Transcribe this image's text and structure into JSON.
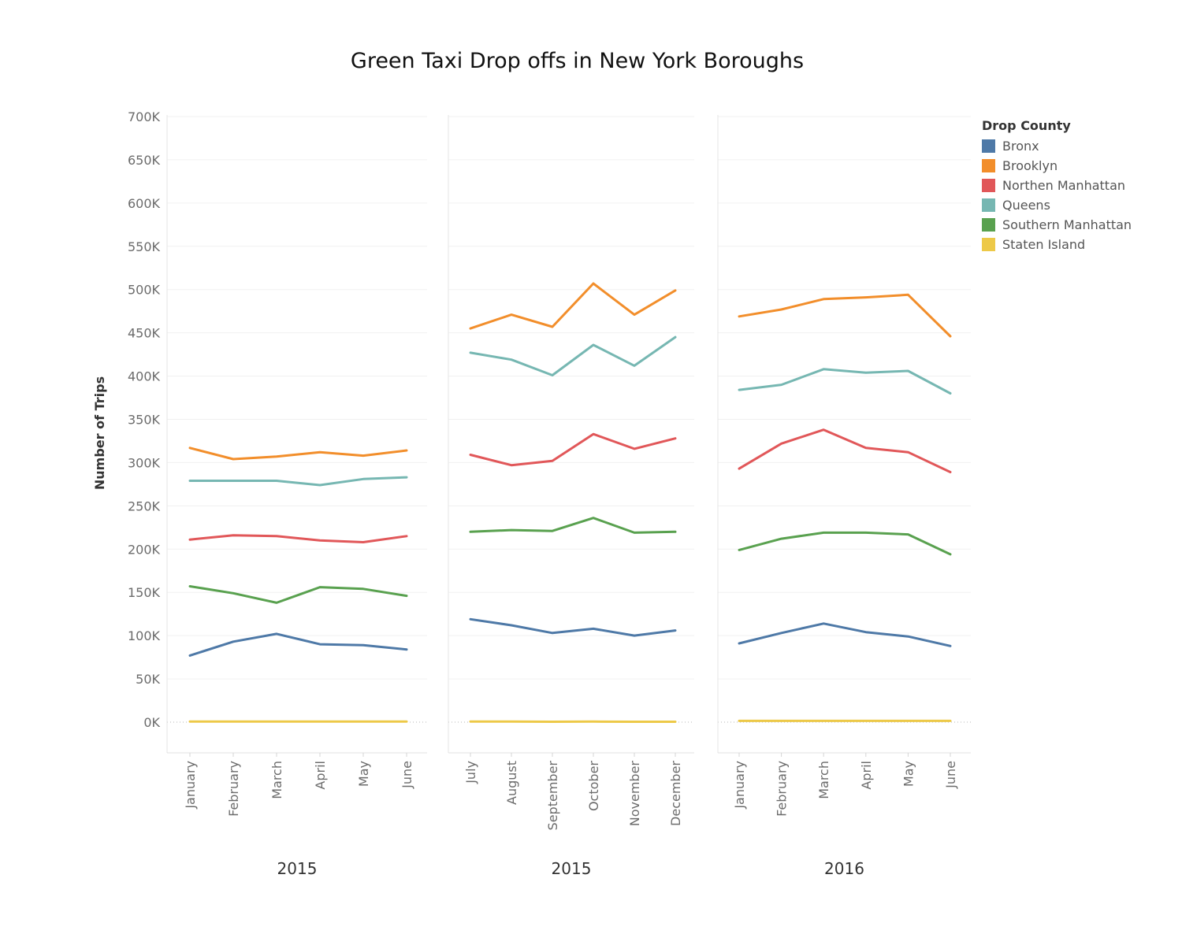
{
  "chart_data": {
    "type": "line",
    "title": "Green Taxi Drop offs in New York Boroughs",
    "ylabel": "Number of Trips",
    "ylim": [
      -35000,
      705000
    ],
    "y_ticks": [
      "700K",
      "650K",
      "600K",
      "550K",
      "500K",
      "450K",
      "400K",
      "350K",
      "300K",
      "250K",
      "200K",
      "150K",
      "100K",
      "50K",
      "0K"
    ],
    "y_tick_values": [
      700000,
      650000,
      600000,
      550000,
      500000,
      450000,
      400000,
      350000,
      300000,
      250000,
      200000,
      150000,
      100000,
      50000,
      0
    ],
    "grid": true,
    "legend": {
      "title": "Drop County",
      "placement": "top-right"
    },
    "series_info": [
      {
        "name": "Bronx",
        "color": "#4e79a7"
      },
      {
        "name": "Brooklyn",
        "color": "#f28e2b"
      },
      {
        "name": "Northen Manhattan",
        "color": "#e15759"
      },
      {
        "name": "Queens",
        "color": "#76b7b2"
      },
      {
        "name": "Southern Manhattan",
        "color": "#59a14f"
      },
      {
        "name": "Staten Island",
        "color": "#edc948"
      }
    ],
    "panels": [
      {
        "label": "2015",
        "categories": [
          "January",
          "February",
          "March",
          "April",
          "May",
          "June"
        ],
        "series": [
          {
            "name": "Bronx",
            "values": [
              77000,
              93000,
              102000,
              90000,
              89000,
              84000
            ]
          },
          {
            "name": "Brooklyn",
            "values": [
              317000,
              304000,
              307000,
              312000,
              308000,
              314000
            ]
          },
          {
            "name": "Northen Manhattan",
            "values": [
              211000,
              216000,
              215000,
              210000,
              208000,
              215000
            ]
          },
          {
            "name": "Queens",
            "values": [
              279000,
              279000,
              279000,
              274000,
              281000,
              283000
            ]
          },
          {
            "name": "Southern Manhattan",
            "values": [
              157000,
              149000,
              138000,
              156000,
              154000,
              146000
            ]
          },
          {
            "name": "Staten Island",
            "values": [
              600,
              600,
              600,
              600,
              600,
              600
            ]
          }
        ]
      },
      {
        "label": "2015",
        "categories": [
          "July",
          "August",
          "September",
          "October",
          "November",
          "December"
        ],
        "series": [
          {
            "name": "Bronx",
            "values": [
              119000,
              112000,
              103000,
              108000,
              100000,
              106000
            ]
          },
          {
            "name": "Brooklyn",
            "values": [
              455000,
              471000,
              457000,
              507000,
              471000,
              499000
            ]
          },
          {
            "name": "Northen Manhattan",
            "values": [
              309000,
              297000,
              302000,
              333000,
              316000,
              328000
            ]
          },
          {
            "name": "Queens",
            "values": [
              427000,
              419000,
              401000,
              436000,
              412000,
              445000
            ]
          },
          {
            "name": "Southern Manhattan",
            "values": [
              220000,
              222000,
              221000,
              236000,
              219000,
              220000
            ]
          },
          {
            "name": "Staten Island",
            "values": [
              600,
              600,
              500,
              600,
              500,
              500
            ]
          }
        ]
      },
      {
        "label": "2016",
        "categories": [
          "January",
          "February",
          "March",
          "April",
          "May",
          "June"
        ],
        "series": [
          {
            "name": "Bronx",
            "values": [
              91000,
              103000,
              114000,
              104000,
              99000,
              88000
            ]
          },
          {
            "name": "Brooklyn",
            "values": [
              469000,
              477000,
              489000,
              491000,
              494000,
              446000
            ]
          },
          {
            "name": "Northen Manhattan",
            "values": [
              293000,
              322000,
              338000,
              317000,
              312000,
              289000
            ]
          },
          {
            "name": "Queens",
            "values": [
              384000,
              390000,
              408000,
              404000,
              406000,
              380000
            ]
          },
          {
            "name": "Southern Manhattan",
            "values": [
              199000,
              212000,
              219000,
              219000,
              217000,
              194000
            ]
          },
          {
            "name": "Staten Island",
            "values": [
              1500,
              1500,
              1500,
              1500,
              1500,
              1500
            ]
          }
        ]
      }
    ]
  }
}
